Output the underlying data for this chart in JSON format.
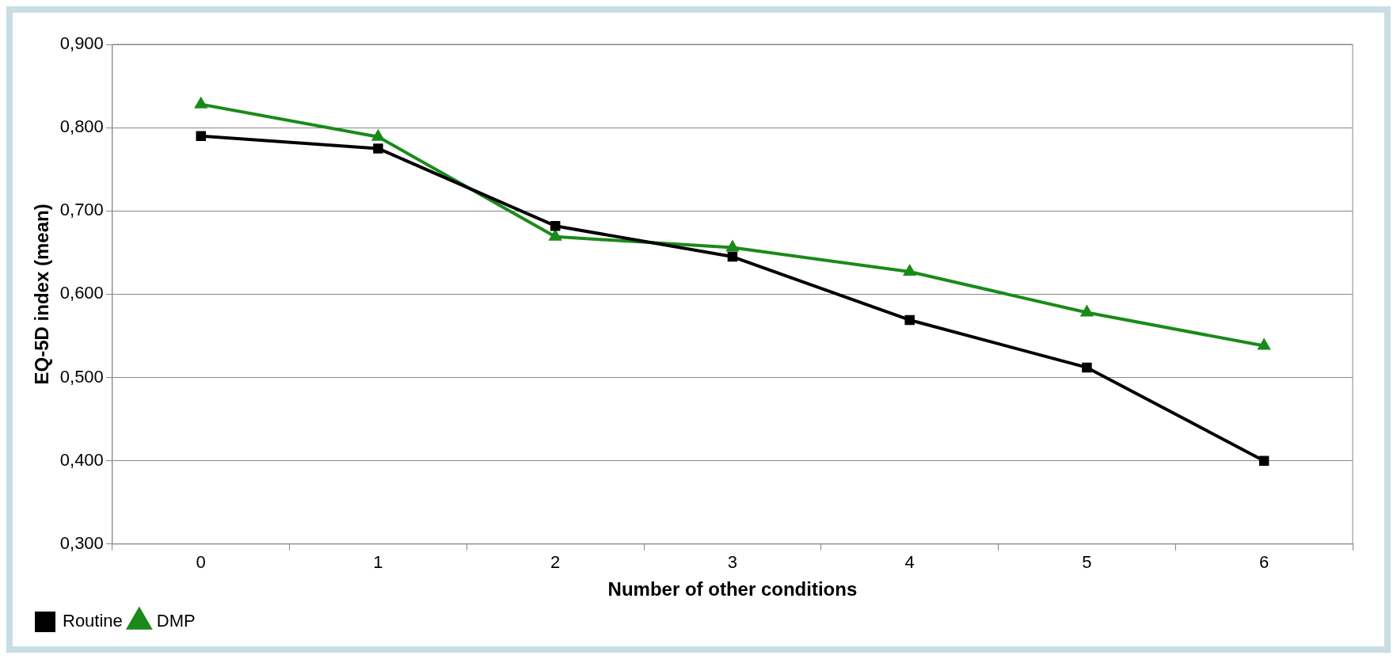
{
  "chart_data": {
    "type": "line",
    "xlabel": "Number of other conditions",
    "ylabel": "EQ-5D index (mean)",
    "categories": [
      "0",
      "1",
      "2",
      "3",
      "4",
      "5",
      "6"
    ],
    "series": [
      {
        "name": "Routine",
        "color": "#000000",
        "marker": "square",
        "values": [
          0.79,
          0.775,
          0.682,
          0.645,
          0.569,
          0.512,
          0.4
        ]
      },
      {
        "name": "DMP",
        "color": "#1a8a1a",
        "marker": "triangle",
        "values": [
          0.828,
          0.789,
          0.669,
          0.656,
          0.627,
          0.578,
          0.538
        ]
      }
    ],
    "ylim": [
      0.3,
      0.9
    ],
    "yticks": [
      {
        "value": 0.3,
        "label": "0,300"
      },
      {
        "value": 0.4,
        "label": "0,400"
      },
      {
        "value": 0.5,
        "label": "0,500"
      },
      {
        "value": 0.6,
        "label": "0,600"
      },
      {
        "value": 0.7,
        "label": "0,700"
      },
      {
        "value": 0.8,
        "label": "0,800"
      },
      {
        "value": 0.9,
        "label": "0,900"
      }
    ],
    "grid": "y",
    "legend": "bottom left",
    "line_style": "solid"
  }
}
